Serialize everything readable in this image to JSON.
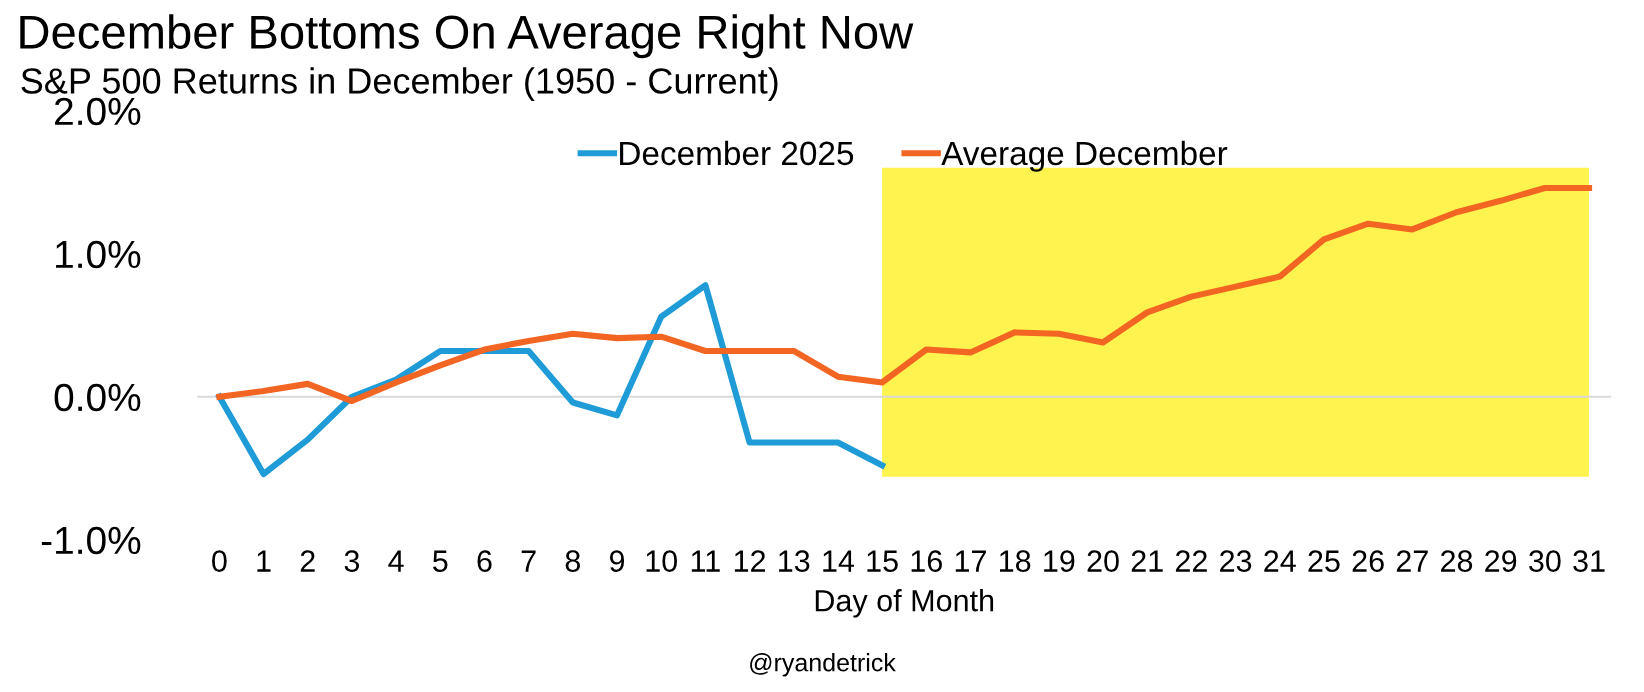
{
  "chart_data": {
    "type": "line",
    "title": "December Bottoms On Average Right Now",
    "subtitle": "S&P 500 Returns in December (1950 - Current)",
    "xlabel": "Day of Month",
    "categories": [
      "0",
      "1",
      "2",
      "3",
      "4",
      "5",
      "6",
      "7",
      "8",
      "9",
      "10",
      "11",
      "12",
      "13",
      "14",
      "15",
      "16",
      "17",
      "18",
      "19",
      "20",
      "21",
      "22",
      "23",
      "24",
      "25",
      "26",
      "27",
      "28",
      "29",
      "30",
      "31"
    ],
    "series": [
      {
        "name": "December 2025",
        "color": "#1f9bd7",
        "values": [
          0,
          -0.54,
          -0.3,
          0.0,
          0.12,
          0.32,
          0.32,
          0.32,
          -0.04,
          -0.13,
          0.56,
          0.78,
          -0.32,
          -0.32,
          -0.32,
          -0.48,
          null,
          null,
          null,
          null,
          null,
          null,
          null,
          null,
          null,
          null,
          null,
          null,
          null,
          null,
          null,
          null
        ]
      },
      {
        "name": "Average December",
        "color": "#f26522",
        "values": [
          0,
          0.04,
          0.09,
          -0.03,
          0.1,
          0.22,
          0.33,
          0.39,
          0.44,
          0.41,
          0.42,
          0.32,
          0.32,
          0.32,
          0.14,
          0.1,
          0.33,
          0.31,
          0.45,
          0.44,
          0.38,
          0.59,
          0.7,
          0.77,
          0.84,
          1.1,
          1.21,
          1.17,
          1.29,
          1.37,
          1.46,
          1.46
        ]
      }
    ],
    "ylim": [
      -1.0,
      2.0
    ],
    "yticks": [
      {
        "value": -1.0,
        "label": "-1.0%"
      },
      {
        "value": 0.0,
        "label": "0.0%"
      },
      {
        "value": 1.0,
        "label": "1.0%"
      },
      {
        "value": 2.0,
        "label": "2.0%"
      }
    ],
    "ref_lines": [
      {
        "axis": "y",
        "value": 0,
        "color": "#d9d9d9"
      }
    ],
    "bands": [
      {
        "axis": "x",
        "from": "15",
        "to": "31",
        "color": "#fff44f"
      }
    ],
    "legend": "top",
    "grid": false,
    "marker": "none",
    "line_style": "solid",
    "annotations": [
      "@ryandetrick"
    ]
  }
}
